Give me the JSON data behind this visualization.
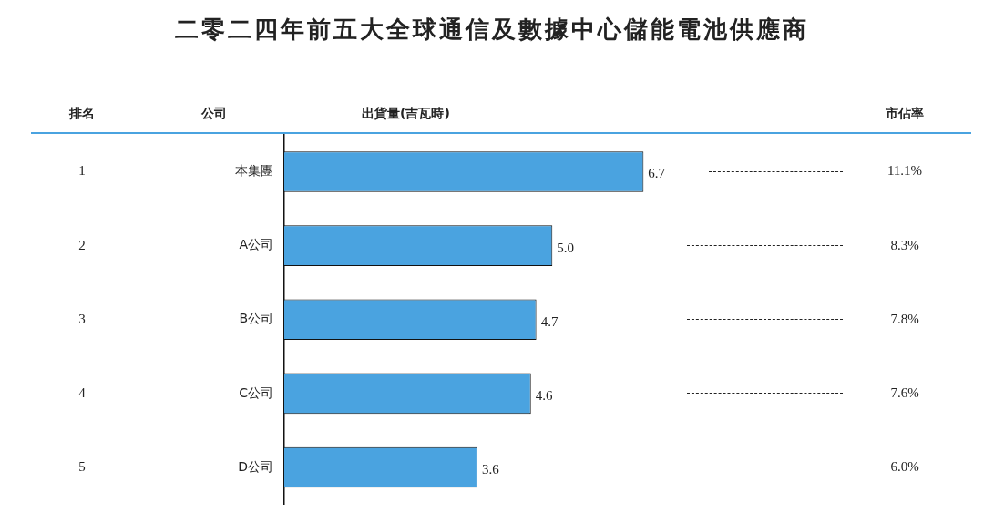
{
  "chart_data": {
    "type": "bar",
    "orientation": "horizontal",
    "title": "二零二四年前五大全球通信及數據中心儲能電池供應商",
    "xlabel": "出貨量(吉瓦時)",
    "ylabel": "公司",
    "categories": [
      "本集團",
      "A公司",
      "B公司",
      "C公司",
      "D公司"
    ],
    "values": [
      6.7,
      5.0,
      4.7,
      4.6,
      3.6
    ],
    "value_labels": [
      "6.7",
      "5.0",
      "4.7",
      "4.6",
      "3.6"
    ],
    "color": "#4aa3e0",
    "tick_labels": "y",
    "grid": false,
    "legend": false,
    "annotations": [
      "排名",
      "市佔率",
      "1",
      "11.1%",
      "2",
      "8.3%",
      "3",
      "7.8%",
      "4",
      "7.6%",
      "5",
      "6.0%"
    ]
  }
}
